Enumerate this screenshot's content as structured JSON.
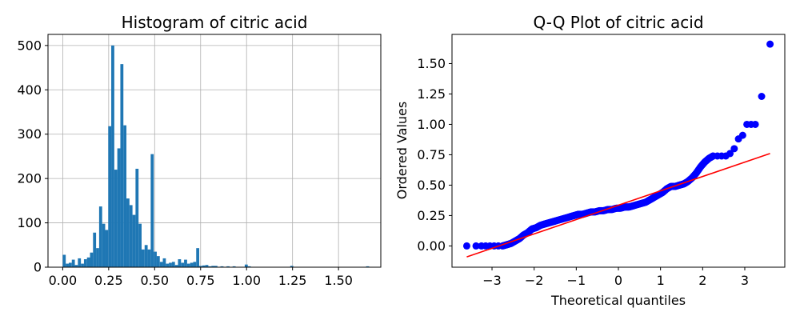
{
  "chart_data": [
    {
      "type": "bar",
      "title": "Histogram of citric acid",
      "xlabel": "",
      "ylabel": "",
      "xlim": [
        -0.08,
        1.73
      ],
      "ylim": [
        0,
        525
      ],
      "grid": true,
      "bar_color": "#1f77b4",
      "x_ticks": [
        0.0,
        0.25,
        0.5,
        0.75,
        1.0,
        1.25,
        1.5
      ],
      "x_tick_labels": [
        "0.00",
        "0.25",
        "0.50",
        "0.75",
        "1.00",
        "1.25",
        "1.50"
      ],
      "y_ticks": [
        0,
        100,
        200,
        300,
        400,
        500
      ],
      "y_tick_labels": [
        "0",
        "100",
        "200",
        "300",
        "400",
        "500"
      ],
      "bin_width": 0.0165,
      "bin_starts": [
        0.0,
        0.0165,
        0.033,
        0.0495,
        0.066,
        0.0825,
        0.099,
        0.1155,
        0.132,
        0.1485,
        0.165,
        0.1815,
        0.198,
        0.2145,
        0.231,
        0.2475,
        0.264,
        0.2805,
        0.297,
        0.3135,
        0.33,
        0.3465,
        0.363,
        0.3795,
        0.396,
        0.4125,
        0.429,
        0.4455,
        0.462,
        0.4785,
        0.495,
        0.5115,
        0.528,
        0.5445,
        0.561,
        0.5775,
        0.594,
        0.6105,
        0.627,
        0.6435,
        0.66,
        0.6765,
        0.693,
        0.7095,
        0.726,
        0.7425,
        0.759,
        0.7755,
        0.792,
        0.8085,
        0.825,
        0.858,
        0.891,
        0.924,
        0.99,
        1.0065,
        1.2375,
        1.65
      ],
      "values": [
        28,
        8,
        10,
        17,
        5,
        20,
        8,
        18,
        22,
        33,
        78,
        43,
        137,
        98,
        84,
        318,
        500,
        220,
        268,
        458,
        320,
        155,
        140,
        118,
        222,
        98,
        40,
        50,
        40,
        255,
        35,
        25,
        12,
        20,
        8,
        10,
        12,
        5,
        18,
        10,
        17,
        8,
        10,
        12,
        43,
        3,
        4,
        5,
        2,
        3,
        3,
        2,
        2,
        2,
        6,
        2,
        3,
        2
      ]
    },
    {
      "type": "scatter",
      "title": "Q-Q Plot of citric acid",
      "xlabel": "Theoretical quantiles",
      "ylabel": "Ordered Values",
      "xlim": [
        -3.95,
        3.95
      ],
      "ylim": [
        -0.175,
        1.74
      ],
      "grid": false,
      "marker_color": "#0000ff",
      "line_color": "#ff0000",
      "x_ticks": [
        -3,
        -2,
        -1,
        0,
        1,
        2,
        3
      ],
      "x_tick_labels": [
        "−3",
        "−2",
        "−1",
        "0",
        "1",
        "2",
        "3"
      ],
      "y_ticks": [
        0.0,
        0.25,
        0.5,
        0.75,
        1.0,
        1.25,
        1.5
      ],
      "y_tick_labels": [
        "0.00",
        "0.25",
        "0.50",
        "0.75",
        "1.00",
        "1.25",
        "1.50"
      ],
      "fit_line": {
        "x": [
          -3.6,
          3.6
        ],
        "y": [
          -0.09,
          0.76
        ]
      },
      "points": {
        "x": [
          -3.6,
          -3.38,
          -3.25,
          -3.15,
          -3.05,
          -2.95,
          -2.85,
          -2.75,
          -2.65,
          -2.55,
          -2.45,
          -2.35,
          -2.25,
          -2.15,
          -2.05,
          -1.95,
          -1.85,
          -1.75,
          -1.65,
          -1.55,
          -1.45,
          -1.35,
          -1.25,
          -1.15,
          -1.05,
          -0.95,
          -0.85,
          -0.75,
          -0.65,
          -0.55,
          -0.45,
          -0.35,
          -0.25,
          -0.15,
          -0.05,
          0.05,
          0.15,
          0.25,
          0.35,
          0.45,
          0.55,
          0.65,
          0.75,
          0.85,
          0.95,
          1.05,
          1.15,
          1.25,
          1.35,
          1.45,
          1.55,
          1.65,
          1.75,
          1.85,
          1.95,
          2.05,
          2.15,
          2.25,
          2.35,
          2.45,
          2.55,
          2.65,
          2.75,
          2.85,
          2.95,
          3.05,
          3.15,
          3.25,
          3.4,
          3.6
        ],
        "y": [
          0.0,
          0.0,
          0.0,
          0.0,
          0.0,
          0.0,
          0.0,
          0.0,
          0.01,
          0.02,
          0.04,
          0.06,
          0.09,
          0.11,
          0.14,
          0.15,
          0.17,
          0.18,
          0.19,
          0.2,
          0.21,
          0.22,
          0.23,
          0.24,
          0.25,
          0.26,
          0.26,
          0.27,
          0.28,
          0.28,
          0.29,
          0.29,
          0.3,
          0.3,
          0.31,
          0.31,
          0.32,
          0.32,
          0.33,
          0.34,
          0.35,
          0.36,
          0.38,
          0.4,
          0.42,
          0.44,
          0.47,
          0.49,
          0.49,
          0.5,
          0.51,
          0.53,
          0.56,
          0.6,
          0.65,
          0.69,
          0.72,
          0.74,
          0.74,
          0.74,
          0.74,
          0.76,
          0.8,
          0.88,
          0.91,
          1.0,
          1.0,
          1.0,
          1.23,
          1.66
        ]
      }
    }
  ]
}
